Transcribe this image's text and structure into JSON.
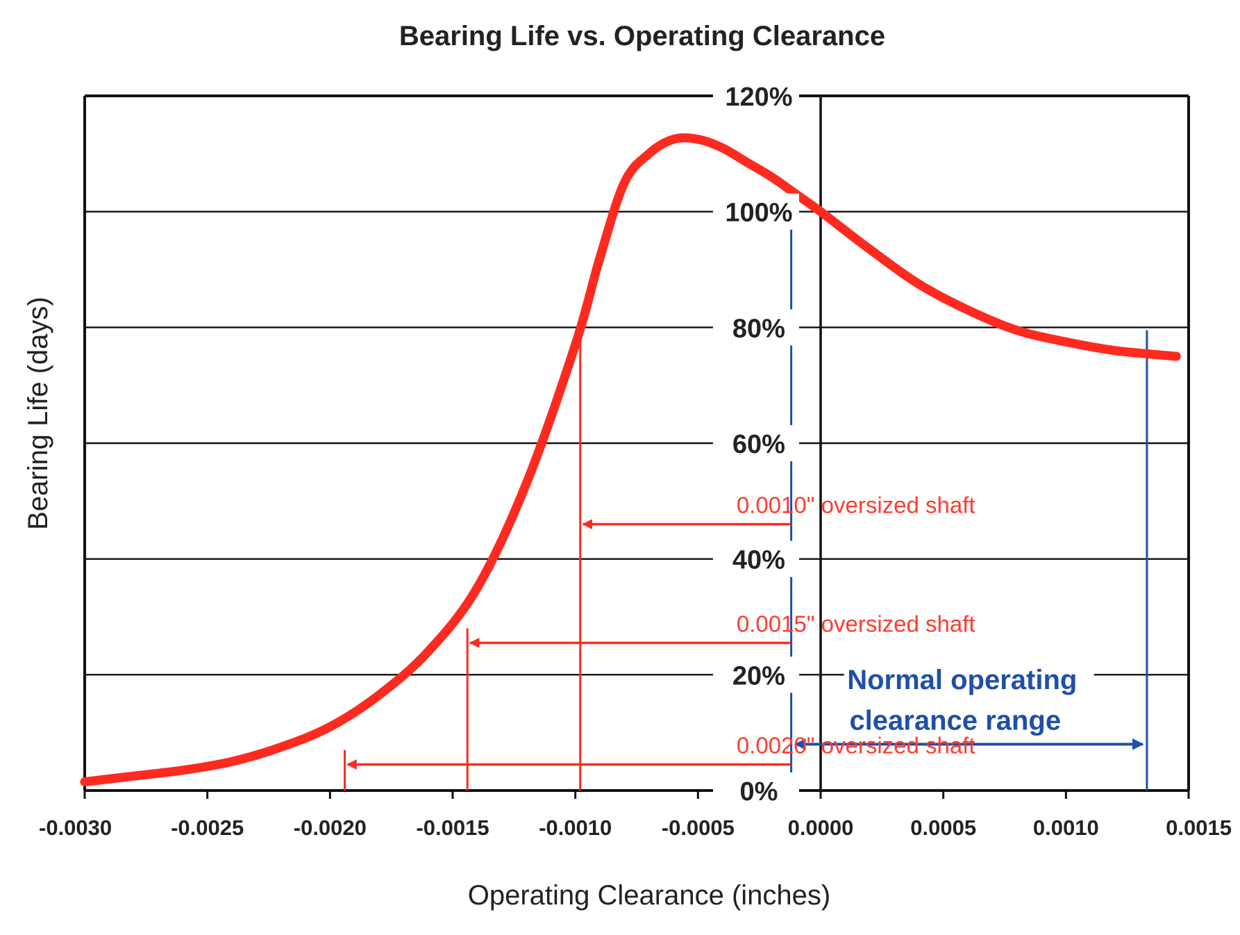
{
  "chart_data": {
    "type": "line",
    "title": "Bearing Life vs. Operating Clearance",
    "xlabel": "Operating Clearance (inches)",
    "ylabel": "Bearing Life (days)",
    "xlim": [
      -0.003,
      0.0015
    ],
    "ylim": [
      0,
      120
    ],
    "x_ticks": [
      "-0.0030",
      "-0.0025",
      "-0.0020",
      "-0.0015",
      "-0.0010",
      "-0.0005",
      "0.0000",
      "0.0005",
      "0.0010",
      "0.0015"
    ],
    "x_tick_values": [
      -0.003,
      -0.0025,
      -0.002,
      -0.0015,
      -0.001,
      -0.0005,
      0,
      0.0005,
      0.001,
      0.0015
    ],
    "y_ticks": [
      "0%",
      "20%",
      "40%",
      "60%",
      "80%",
      "100%",
      "120%"
    ],
    "y_tick_values": [
      0,
      20,
      40,
      60,
      80,
      100,
      120
    ],
    "grid": true,
    "series": [
      {
        "name": "Bearing life",
        "color": "#ff2a1f",
        "x": [
          -0.003,
          -0.0028,
          -0.0026,
          -0.0024,
          -0.0022,
          -0.002,
          -0.0018,
          -0.0016,
          -0.0014,
          -0.0012,
          -0.001,
          -0.0009,
          -0.0008,
          -0.0007,
          -0.0006,
          -0.0005,
          -0.0004,
          -0.0003,
          -0.0002,
          -0.0001,
          0,
          0.0002,
          0.0004,
          0.0006,
          0.0008,
          0.001,
          0.0012,
          0.00145
        ],
        "y": [
          1.5,
          2.5,
          3.5,
          5,
          7.5,
          11,
          16.5,
          24,
          35,
          53,
          77,
          92,
          105,
          110,
          112.5,
          112.5,
          111,
          108.5,
          106,
          103,
          100,
          93.5,
          87.5,
          83,
          79.5,
          77.5,
          76,
          75
        ]
      }
    ],
    "annotations": [
      {
        "text": "0.0010\" oversized shaft",
        "color": "#ff2a1f",
        "x_value": -0.00098,
        "y_value": 46,
        "arrow_from_x": -0.00012
      },
      {
        "text": "0.0015\" oversized shaft",
        "color": "#ff2a1f",
        "x_value": -0.00144,
        "y_value": 25.5,
        "arrow_from_x": -0.00012
      },
      {
        "text": "0.0020\" oversized shaft",
        "color": "#ff2a1f",
        "x_value": -0.00194,
        "y_value": 4.5,
        "arrow_from_x": -0.00012
      }
    ],
    "normal_range": {
      "label_line1": "Normal operating",
      "label_line2": "clearance range",
      "color": "#1f4fa8",
      "x_min": -0.00012,
      "x_max": 0.00133,
      "arrow_y_value": 8
    }
  }
}
